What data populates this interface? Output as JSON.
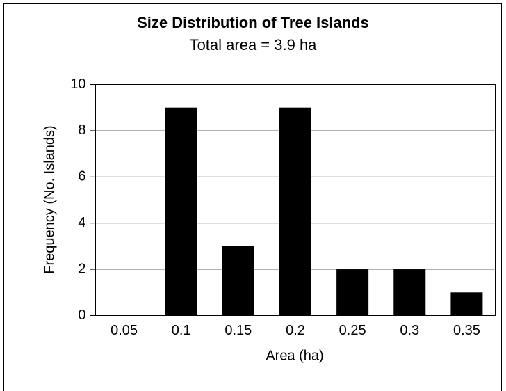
{
  "chart_data": {
    "type": "bar",
    "title": "Size Distribution of Tree Islands",
    "subtitle": "Total area = 3.9 ha",
    "x_label": "Area (ha)",
    "y_label": "Frequency (No. Islands)",
    "categories": [
      "0.05",
      "0.1",
      "0.15",
      "0.2",
      "0.25",
      "0.3",
      "0.35"
    ],
    "values": [
      0,
      9,
      3,
      9,
      2,
      2,
      1
    ],
    "color": "#000000",
    "ylim": [
      0,
      10
    ],
    "yticks": [
      0,
      2,
      4,
      6,
      8,
      10
    ],
    "grid": true
  }
}
